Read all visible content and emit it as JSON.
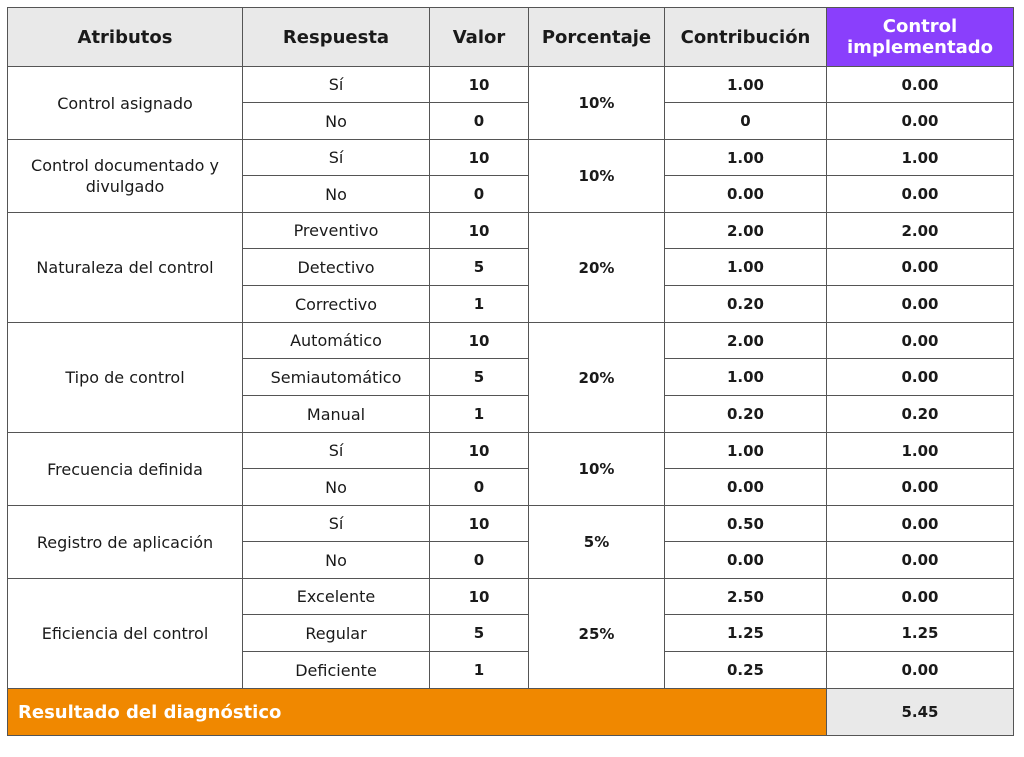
{
  "table": {
    "headers": {
      "atributos": "Atributos",
      "respuesta": "Respuesta",
      "valor": "Valor",
      "porcentaje": "Porcentaje",
      "contribucion": "Contribución",
      "control_implementado": "Control implementado"
    },
    "groups": [
      {
        "attribute": "Control asignado",
        "percentage": "10%",
        "rows": [
          {
            "respuesta": "Sí",
            "valor": "10",
            "contribucion": "1.00",
            "control_implementado": "0.00"
          },
          {
            "respuesta": "No",
            "valor": "0",
            "contribucion": "0",
            "control_implementado": "0.00"
          }
        ]
      },
      {
        "attribute": "Control documentado y divulgado",
        "percentage": "10%",
        "rows": [
          {
            "respuesta": "Sí",
            "valor": "10",
            "contribucion": "1.00",
            "control_implementado": "1.00"
          },
          {
            "respuesta": "No",
            "valor": "0",
            "contribucion": "0.00",
            "control_implementado": "0.00"
          }
        ]
      },
      {
        "attribute": "Naturaleza del control",
        "percentage": "20%",
        "rows": [
          {
            "respuesta": "Preventivo",
            "valor": "10",
            "contribucion": "2.00",
            "control_implementado": "2.00"
          },
          {
            "respuesta": "Detectivo",
            "valor": "5",
            "contribucion": "1.00",
            "control_implementado": "0.00"
          },
          {
            "respuesta": "Correctivo",
            "valor": "1",
            "contribucion": "0.20",
            "control_implementado": "0.00"
          }
        ]
      },
      {
        "attribute": "Tipo de control",
        "percentage": "20%",
        "rows": [
          {
            "respuesta": "Automático",
            "valor": "10",
            "contribucion": "2.00",
            "control_implementado": "0.00"
          },
          {
            "respuesta": "Semiautomático",
            "valor": "5",
            "contribucion": "1.00",
            "control_implementado": "0.00"
          },
          {
            "respuesta": "Manual",
            "valor": "1",
            "contribucion": "0.20",
            "control_implementado": "0.20"
          }
        ]
      },
      {
        "attribute": "Frecuencia definida",
        "percentage": "10%",
        "rows": [
          {
            "respuesta": "Sí",
            "valor": "10",
            "contribucion": "1.00",
            "control_implementado": "1.00"
          },
          {
            "respuesta": "No",
            "valor": "0",
            "contribucion": "0.00",
            "control_implementado": "0.00"
          }
        ]
      },
      {
        "attribute": "Registro de aplicación",
        "percentage": "5%",
        "rows": [
          {
            "respuesta": "Sí",
            "valor": "10",
            "contribucion": "0.50",
            "control_implementado": "0.00"
          },
          {
            "respuesta": "No",
            "valor": "0",
            "contribucion": "0.00",
            "control_implementado": "0.00"
          }
        ]
      },
      {
        "attribute": "Eficiencia del control",
        "percentage": "25%",
        "rows": [
          {
            "respuesta": "Excelente",
            "valor": "10",
            "contribucion": "2.50",
            "control_implementado": "0.00"
          },
          {
            "respuesta": "Regular",
            "valor": "5",
            "contribucion": "1.25",
            "control_implementado": "1.25"
          },
          {
            "respuesta": "Deficiente",
            "valor": "1",
            "contribucion": "0.25",
            "control_implementado": "0.00"
          }
        ]
      }
    ],
    "result": {
      "label": "Resultado del diagnóstico",
      "value": "5.45"
    }
  },
  "colors": {
    "header_bg": "#e9e9e9",
    "highlight_header_bg": "#8a3ffc",
    "result_bg": "#f08800",
    "border": "#555555"
  }
}
